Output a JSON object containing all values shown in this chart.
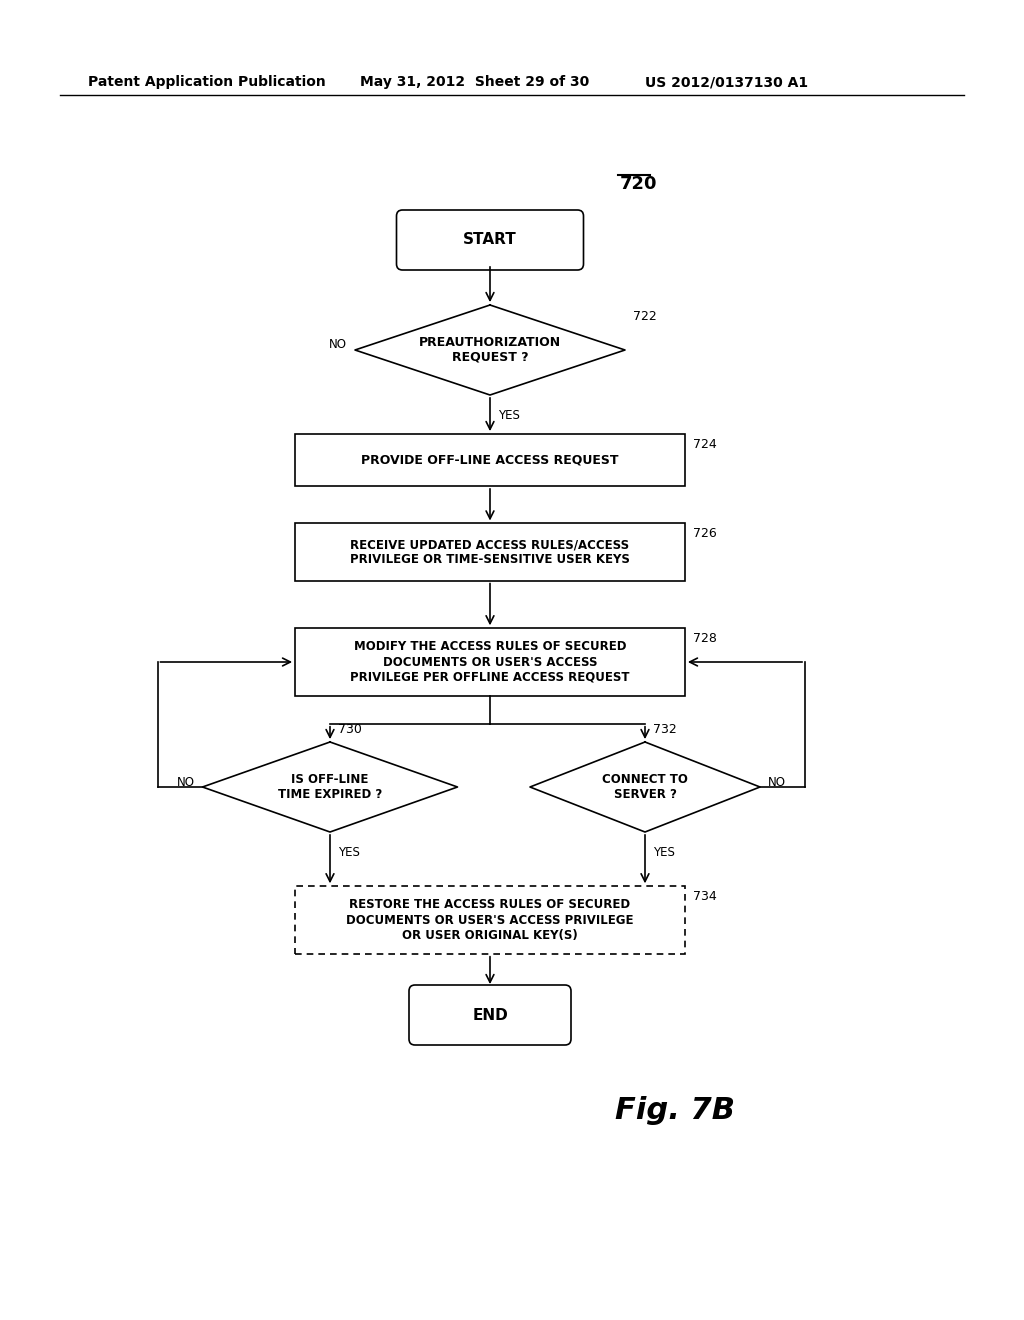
{
  "header_left": "Patent Application Publication",
  "header_mid": "May 31, 2012  Sheet 29 of 30",
  "header_right": "US 2012/0137130 A1",
  "diagram_label": "720",
  "fig_label": "Fig. 7B",
  "background_color": "#ffffff",
  "start_label": "START",
  "end_label": "END",
  "n722_label": "PREAUTHORIZATION\nREQUEST ?",
  "n722_ref": "722",
  "n724_label": "PROVIDE OFF-LINE ACCESS REQUEST",
  "n724_ref": "724",
  "n726_label": "RECEIVE UPDATED ACCESS RULES/ACCESS\nPRIVILEGE OR TIME-SENSITIVE USER KEYS",
  "n726_ref": "726",
  "n728_label": "MODIFY THE ACCESS RULES OF SECURED\nDOCUMENTS OR USER'S ACCESS\nPRIVILEGE PER OFFLINE ACCESS REQUEST",
  "n728_ref": "728",
  "n730_label": "IS OFF-LINE\nTIME EXPIRED ?",
  "n730_ref": "730",
  "n732_label": "CONNECT TO\nSERVER ?",
  "n732_ref": "732",
  "n734_label": "RESTORE THE ACCESS RULES OF SECURED\nDOCUMENTS OR USER'S ACCESS PRIVILEGE\nOR USER ORIGINAL KEY(S)",
  "n734_ref": "734",
  "yes_label": "YES",
  "no_label": "NO"
}
